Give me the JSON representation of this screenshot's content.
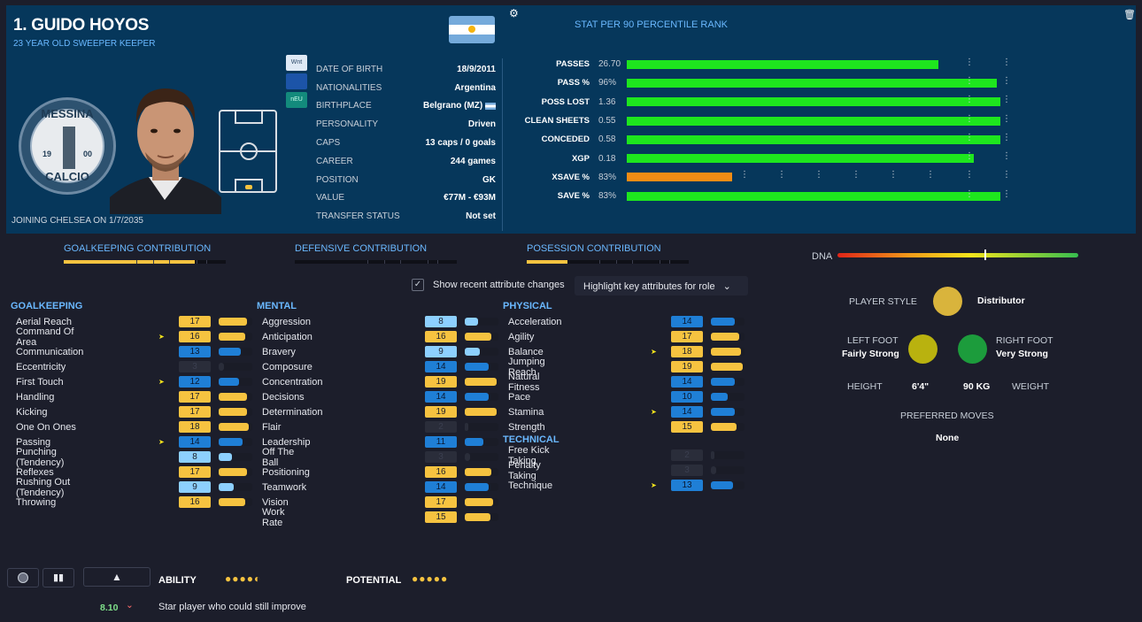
{
  "header": {
    "name": "1. GUIDO HOYOS",
    "subtitle": "23 YEAR OLD  SWEEPER KEEPER",
    "joining": "JOINING CHELSEA ON 1/7/2035",
    "club_badge": {
      "top": "MESSINA",
      "bottom": "CALCIO",
      "year_left": "19",
      "year_right": "00"
    }
  },
  "tags": [
    "Wnt",
    "",
    "nEU"
  ],
  "info": [
    {
      "k": "DATE OF BIRTH",
      "v": "18/9/2011"
    },
    {
      "k": "NATIONALITIES",
      "v": "Argentina"
    },
    {
      "k": "BIRTHPLACE",
      "v": "Belgrano (MZ)"
    },
    {
      "k": "PERSONALITY",
      "v": "Driven"
    },
    {
      "k": "CAPS",
      "v": "13 caps / 0 goals"
    },
    {
      "k": "CAREER",
      "v": "244  games"
    },
    {
      "k": "POSITION",
      "v": "GK"
    },
    {
      "k": "VALUE",
      "v": "€77M - €93M"
    },
    {
      "k": "TRANSFER STATUS",
      "v": "Not set"
    }
  ],
  "stats": {
    "title": "STAT   PER 90  PERCENTILE RANK",
    "rows": [
      {
        "name": "PASSES",
        "value": "26.70",
        "pct": 0.8,
        "color": "#1ee61e"
      },
      {
        "name": "PASS %",
        "value": "96%",
        "pct": 0.95,
        "color": "#1ee61e"
      },
      {
        "name": "POSS LOST",
        "value": "1.36",
        "pct": 0.96,
        "color": "#1ee61e"
      },
      {
        "name": "CLEAN SHEETS",
        "value": "0.55",
        "pct": 0.96,
        "color": "#1ee61e"
      },
      {
        "name": "CONCEDED",
        "value": "0.58",
        "pct": 0.96,
        "color": "#1ee61e"
      },
      {
        "name": "XGP",
        "value": "0.18",
        "pct": 0.89,
        "color": "#1ee61e"
      },
      {
        "name": "XSAVE %",
        "value": "83%",
        "pct": 0.27,
        "color": "#f28c14"
      },
      {
        "name": "SAVE %",
        "value": "83%",
        "pct": 0.96,
        "color": "#1ee61e"
      }
    ]
  },
  "contributions": [
    {
      "label": "GOALKEEPING CONTRIBUTION",
      "value": 0.81
    },
    {
      "label": "DEFENSIVE CONTRIBUTION",
      "value": 0.0
    },
    {
      "label": "POSESSION CONTRIBUTION",
      "value": 0.25
    }
  ],
  "dna": {
    "label": "DNA",
    "value": 0.61
  },
  "controls": {
    "show_changes": "Show recent attribute changes",
    "highlight": "Highlight key attributes for role"
  },
  "colors": {
    "low": "#2a2d3a",
    "mid_blue": "#1f7fd6",
    "light_blue": "#8dd0ff",
    "gold": "#f6c340"
  },
  "attributes": {
    "goalkeeping": {
      "title": "GOALKEEPING",
      "items": [
        {
          "name": "Aerial Reach",
          "value": "17",
          "flag": false
        },
        {
          "name": "Command Of Area",
          "value": "16",
          "flag": true
        },
        {
          "name": "Communication",
          "value": "13",
          "flag": false
        },
        {
          "name": "Eccentricity",
          "value": "3",
          "flag": false
        },
        {
          "name": "First Touch",
          "value": "12",
          "flag": true
        },
        {
          "name": "Handling",
          "value": "17",
          "flag": false
        },
        {
          "name": "Kicking",
          "value": "17",
          "flag": false
        },
        {
          "name": "One On Ones",
          "value": "18",
          "flag": false
        },
        {
          "name": "Passing",
          "value": "14",
          "flag": true
        },
        {
          "name": "Punching (Tendency)",
          "value": "8",
          "flag": false
        },
        {
          "name": "Reflexes",
          "value": "17",
          "flag": false
        },
        {
          "name": "Rushing Out (Tendency)",
          "value": "9",
          "flag": false
        },
        {
          "name": "Throwing",
          "value": "16",
          "flag": false
        }
      ]
    },
    "mental": {
      "title": "MENTAL",
      "items": [
        {
          "name": "Aggression",
          "value": "8",
          "flag": false
        },
        {
          "name": "Anticipation",
          "value": "16",
          "flag": false
        },
        {
          "name": "Bravery",
          "value": "9",
          "flag": false
        },
        {
          "name": "Composure",
          "value": "14",
          "flag": false
        },
        {
          "name": "Concentration",
          "value": "19",
          "flag": false
        },
        {
          "name": "Decisions",
          "value": "14",
          "flag": false
        },
        {
          "name": "Determination",
          "value": "19",
          "flag": false
        },
        {
          "name": "Flair",
          "value": "2",
          "flag": false
        },
        {
          "name": "Leadership",
          "value": "11",
          "flag": false
        },
        {
          "name": "Off The Ball",
          "value": "3",
          "flag": false
        },
        {
          "name": "Positioning",
          "value": "16",
          "flag": false
        },
        {
          "name": "Teamwork",
          "value": "14",
          "flag": false
        },
        {
          "name": "Vision",
          "value": "17",
          "flag": false
        },
        {
          "name": "Work Rate",
          "value": "15",
          "flag": false
        }
      ]
    },
    "physical": {
      "title": "PHYSICAL",
      "items": [
        {
          "name": "Acceleration",
          "value": "14",
          "flag": false
        },
        {
          "name": "Agility",
          "value": "17",
          "flag": false
        },
        {
          "name": "Balance",
          "value": "18",
          "flag": true
        },
        {
          "name": "Jumping Reach",
          "value": "19",
          "flag": false
        },
        {
          "name": "Natural Fitness",
          "value": "14",
          "flag": false
        },
        {
          "name": "Pace",
          "value": "10",
          "flag": false
        },
        {
          "name": "Stamina",
          "value": "14",
          "flag": true
        },
        {
          "name": "Strength",
          "value": "15",
          "flag": false
        }
      ]
    },
    "technical": {
      "title": "TECHNICAL",
      "items": [
        {
          "name": "Free Kick Taking",
          "value": "2",
          "flag": false
        },
        {
          "name": "Penalty Taking",
          "value": "3",
          "flag": false
        },
        {
          "name": "Technique",
          "value": "13",
          "flag": true
        }
      ]
    }
  },
  "profile": {
    "player_style_label": "PLAYER STYLE",
    "player_style": "Distributor",
    "left_foot_label": "LEFT FOOT",
    "left_foot": "Fairly Strong",
    "right_foot_label": "RIGHT FOOT",
    "right_foot": "Very Strong",
    "height_label": "HEIGHT",
    "height": "6'4\"",
    "weight": "90 KG",
    "weight_label": "WEIGHT",
    "preferred_moves_label": "PREFERRED MOVES",
    "preferred_moves": "None"
  },
  "footer": {
    "ability_label": "ABILITY",
    "ability_stars": 4.5,
    "potential_label": "POTENTIAL",
    "potential_stars": 5,
    "rating": "8.10",
    "rating_caret": "⌄",
    "description": "Star player who could still improve"
  }
}
